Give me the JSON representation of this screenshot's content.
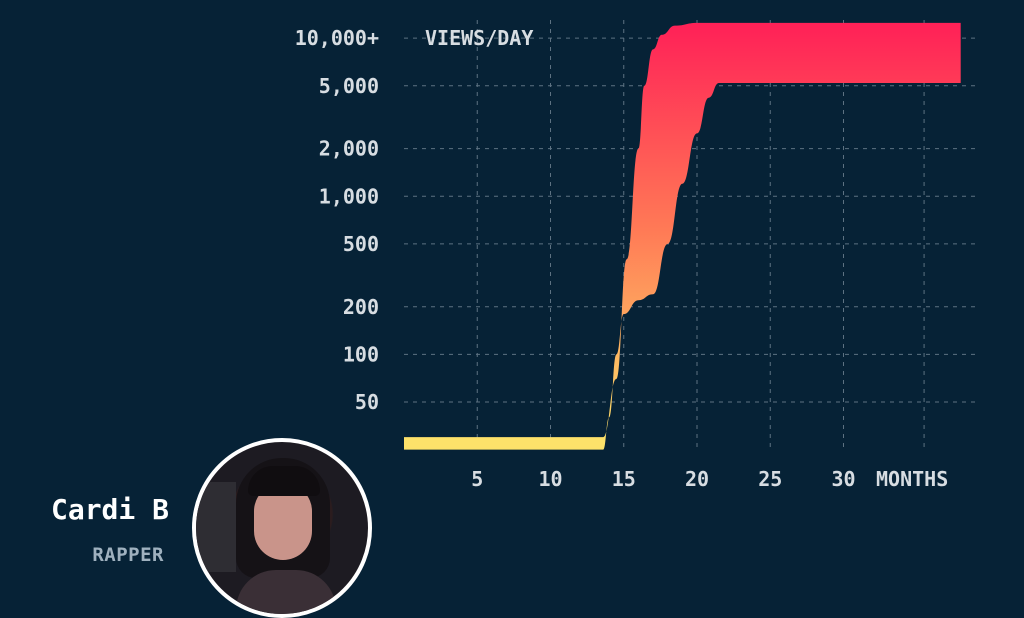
{
  "chart_data": {
    "type": "area",
    "title": "",
    "xlabel": "MONTHS",
    "ylabel": "VIEWS/DAY",
    "y_scale": "log",
    "x_range": [
      0,
      38
    ],
    "x_ticks": [
      5,
      10,
      15,
      20,
      25,
      30
    ],
    "x_tick_labels": [
      "5",
      "10",
      "15",
      "20",
      "25",
      "30"
    ],
    "y_ticks": [
      50,
      100,
      200,
      500,
      1000,
      2000,
      5000,
      10000
    ],
    "y_tick_labels": [
      "50",
      "100",
      "200",
      "500",
      "1,000",
      "2,000",
      "5,000",
      "10,000+"
    ],
    "grid": true,
    "color_low": "#fde26a",
    "color_high": "#ff1f57",
    "upper": [
      [
        0,
        30
      ],
      [
        13.6,
        30
      ],
      [
        14.5,
        70
      ],
      [
        15.2,
        400
      ],
      [
        16,
        2000
      ],
      [
        16.4,
        5000
      ],
      [
        17,
        8500
      ],
      [
        17.6,
        10500
      ],
      [
        18.5,
        12000
      ],
      [
        20,
        12500
      ],
      [
        38,
        12500
      ]
    ],
    "lower": [
      [
        0,
        25
      ],
      [
        13.6,
        25
      ],
      [
        14,
        40
      ],
      [
        14.5,
        100
      ],
      [
        15,
        180
      ],
      [
        16,
        220
      ],
      [
        17,
        240
      ],
      [
        18,
        500
      ],
      [
        19,
        1200
      ],
      [
        20,
        2500
      ],
      [
        20.8,
        4200
      ],
      [
        21.5,
        5200
      ],
      [
        38,
        5200
      ]
    ]
  },
  "person": {
    "name": "Cardi B",
    "role": "RAPPER"
  }
}
